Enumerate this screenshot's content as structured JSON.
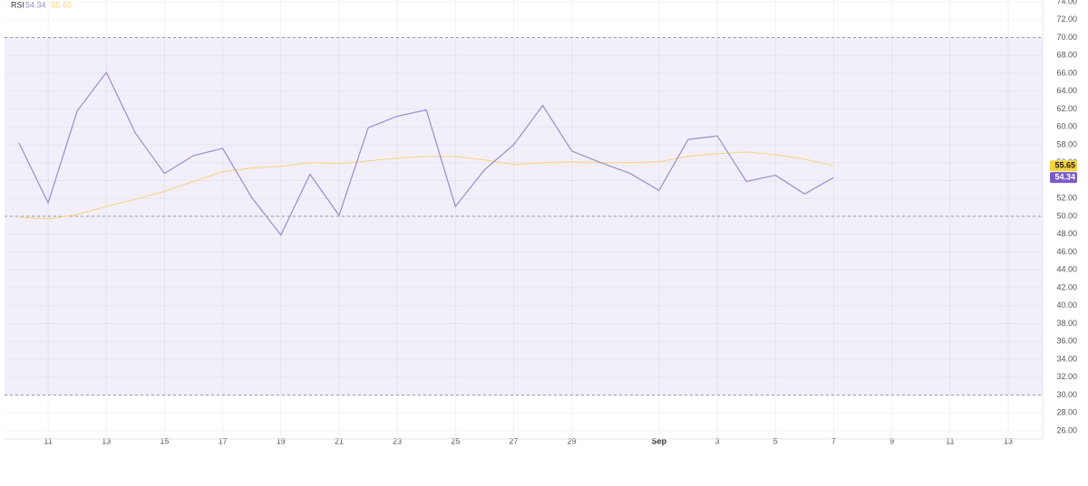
{
  "chart_data": {
    "type": "line",
    "title": "RSI",
    "categories": [
      null,
      "11",
      null,
      "13",
      null,
      "15",
      null,
      "17",
      null,
      "19",
      null,
      "21",
      null,
      "23",
      null,
      "25",
      null,
      "27",
      null,
      "29",
      null,
      null,
      "Sep",
      null,
      "3",
      null,
      "5",
      null,
      "7",
      null,
      "9",
      null,
      "11",
      null,
      "13"
    ],
    "series": [
      {
        "color": "#9b8cc7",
        "values": [
          58.2,
          51.5,
          61.8,
          66.1,
          59.3,
          54.8,
          56.8,
          57.6,
          52.1,
          47.9,
          54.7,
          50.1,
          59.9,
          61.2,
          61.9,
          51.1,
          55.2,
          58.0,
          62.4,
          57.3,
          56.0,
          54.8,
          52.9,
          58.6,
          59.0,
          53.9,
          54.6,
          52.5,
          54.34,
          null,
          null,
          null,
          null,
          null,
          null
        ]
      },
      {
        "color": "#f6d47a",
        "values": [
          49.9,
          49.7,
          50.2,
          51.1,
          51.9,
          52.8,
          53.9,
          55.0,
          55.4,
          55.6,
          56.0,
          55.9,
          56.2,
          56.5,
          56.7,
          56.7,
          56.3,
          55.8,
          56.0,
          56.1,
          56.0,
          56.0,
          56.1,
          56.7,
          57.0,
          57.2,
          56.9,
          56.4,
          55.65,
          null,
          null,
          null,
          null,
          null,
          null
        ]
      }
    ],
    "ylim": [
      26,
      74
    ],
    "yticks": [
      {
        "value": 26,
        "label": "26.00"
      },
      {
        "value": 28,
        "label": "28.00"
      },
      {
        "value": 30,
        "label": "30.00"
      },
      {
        "value": 32,
        "label": "32.00"
      },
      {
        "value": 34,
        "label": "34.00"
      },
      {
        "value": 36,
        "label": "36.00"
      },
      {
        "value": 38,
        "label": "38.00"
      },
      {
        "value": 40,
        "label": "40.00"
      },
      {
        "value": 42,
        "label": "42.00"
      },
      {
        "value": 44,
        "label": "44.00"
      },
      {
        "value": 46,
        "label": "46.00"
      },
      {
        "value": 48,
        "label": "48.00"
      },
      {
        "value": 50,
        "label": "50.00"
      },
      {
        "value": 52,
        "label": "52.00"
      },
      {
        "value": 54,
        "label": "54.00"
      },
      {
        "value": 56,
        "label": "56.00"
      },
      {
        "value": 58,
        "label": "58.00"
      },
      {
        "value": 60,
        "label": "60.00"
      },
      {
        "value": 62,
        "label": "62.00"
      },
      {
        "value": 64,
        "label": "64.00"
      },
      {
        "value": 66,
        "label": "66.00"
      },
      {
        "value": 68,
        "label": "68.00"
      },
      {
        "value": 70,
        "label": "70.00"
      },
      {
        "value": 72,
        "label": "72.00"
      },
      {
        "value": 74,
        "label": "74.00"
      }
    ],
    "band_lines": [
      70,
      50,
      30
    ],
    "band_color": "#f2effb",
    "grid": true
  }
}
